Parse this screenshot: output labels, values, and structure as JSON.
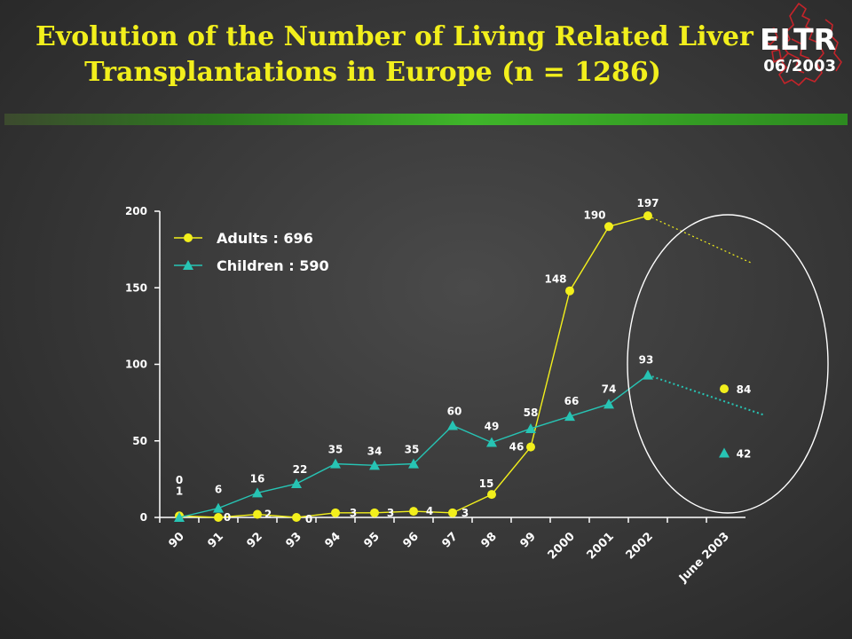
{
  "title_lines": [
    "Evolution of the Number of Living Related Liver",
    "Transplantations in Europe (n = 1286)"
  ],
  "org": {
    "name": "ELTR",
    "date": "06/2003"
  },
  "colors": {
    "title": "#f2ef1c",
    "adults": "#f2ef1c",
    "children": "#27c4b4",
    "axis": "#ffffff",
    "text": "#ffffff",
    "map": "#c4242a"
  },
  "chart_data": {
    "type": "line",
    "categories": [
      "90",
      "91",
      "92",
      "93",
      "94",
      "95",
      "96",
      "97",
      "98",
      "99",
      "2000",
      "2001",
      "2002",
      "June 2003"
    ],
    "ylim": [
      0,
      200
    ],
    "yticks": [
      "0",
      "50",
      "100",
      "150",
      "200"
    ],
    "legend_position": "top-left",
    "series": [
      {
        "name": "Adults : 696",
        "marker": "circle",
        "values": [
          1,
          0,
          2,
          0,
          3,
          3,
          4,
          3,
          15,
          46,
          148,
          190,
          197,
          84
        ],
        "labels": [
          "1",
          "0",
          "2",
          "0",
          "3",
          "3",
          "4",
          "3",
          "15",
          "46",
          "148",
          "190",
          "197",
          "84"
        ]
      },
      {
        "name": "Children : 590",
        "marker": "triangle",
        "values": [
          0,
          6,
          16,
          22,
          35,
          34,
          35,
          60,
          49,
          58,
          66,
          74,
          93,
          42
        ],
        "labels": [
          "0",
          "6",
          "16",
          "22",
          "35",
          "34",
          "35",
          "60",
          "49",
          "58",
          "66",
          "74",
          "93",
          "42"
        ]
      }
    ],
    "annotations": [
      "Last category (June 2003) is shown as isolated markers inside an ellipse with a dotted trend line from 2002"
    ]
  }
}
